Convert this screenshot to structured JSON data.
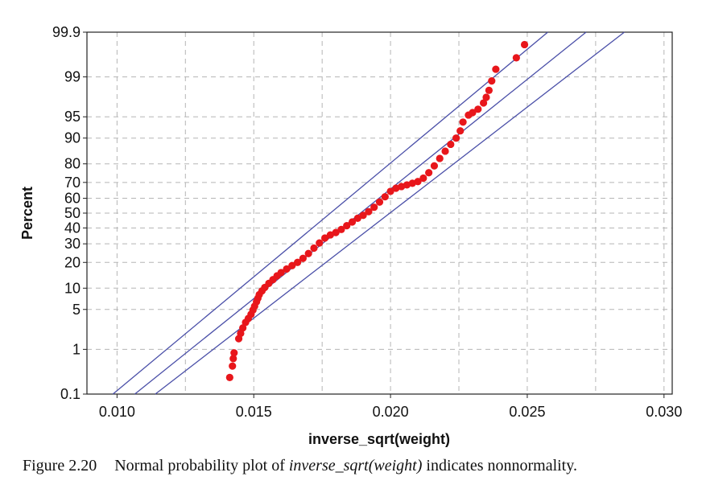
{
  "chart_data": {
    "type": "scatter",
    "title": "",
    "xlabel": "inverse_sqrt(weight)",
    "ylabel": "Percent",
    "xlim": [
      0.0089,
      0.0303
    ],
    "ylim": [
      0.1,
      99.9
    ],
    "y_scale": "normal-probability",
    "x_ticks": [
      0.01,
      0.015,
      0.02,
      0.025,
      0.03
    ],
    "x_tick_labels": [
      "0.010",
      "0.015",
      "0.020",
      "0.025",
      "0.030"
    ],
    "y_ticks": [
      0.1,
      1,
      5,
      10,
      20,
      30,
      40,
      50,
      60,
      70,
      80,
      90,
      95,
      99,
      99.9
    ],
    "y_tick_labels": [
      "0.1",
      "1",
      "5",
      "10",
      "20",
      "30",
      "40",
      "50",
      "60",
      "70",
      "80",
      "90",
      "95",
      "99",
      "99.9"
    ],
    "grid": true,
    "point_color": "#e8161b",
    "line_color": "#4a4fa8",
    "fit_lines": [
      {
        "role": "fit",
        "points": [
          [
            0.01065,
            0.1
          ],
          [
            0.02715,
            99.9
          ]
        ]
      },
      {
        "role": "upper-bound",
        "points": [
          [
            0.00985,
            0.1
          ],
          [
            0.02575,
            99.9
          ]
        ]
      },
      {
        "role": "lower-bound",
        "points": [
          [
            0.0114,
            0.1
          ],
          [
            0.02855,
            99.9
          ]
        ]
      }
    ],
    "points": [
      [
        0.01412,
        0.25
      ],
      [
        0.01422,
        0.45
      ],
      [
        0.01425,
        0.65
      ],
      [
        0.01428,
        0.85
      ],
      [
        0.01445,
        1.6
      ],
      [
        0.01452,
        2.0
      ],
      [
        0.0146,
        2.5
      ],
      [
        0.0147,
        3.1
      ],
      [
        0.0148,
        3.6
      ],
      [
        0.0149,
        4.2
      ],
      [
        0.01497,
        4.9
      ],
      [
        0.01503,
        5.6
      ],
      [
        0.0151,
        6.5
      ],
      [
        0.01515,
        7.3
      ],
      [
        0.0152,
        8.2
      ],
      [
        0.0153,
        9.2
      ],
      [
        0.0154,
        10.2
      ],
      [
        0.01555,
        11.5
      ],
      [
        0.0157,
        12.8
      ],
      [
        0.01585,
        14.2
      ],
      [
        0.016,
        15.5
      ],
      [
        0.0162,
        17.0
      ],
      [
        0.0164,
        18.5
      ],
      [
        0.0166,
        20.0
      ],
      [
        0.0168,
        22.0
      ],
      [
        0.017,
        24.5
      ],
      [
        0.0172,
        27.5
      ],
      [
        0.0174,
        30.5
      ],
      [
        0.0176,
        33.5
      ],
      [
        0.0178,
        35.5
      ],
      [
        0.018,
        37.0
      ],
      [
        0.0182,
        39.0
      ],
      [
        0.0184,
        41.5
      ],
      [
        0.0186,
        44.0
      ],
      [
        0.0188,
        46.5
      ],
      [
        0.019,
        48.5
      ],
      [
        0.0192,
        51.0
      ],
      [
        0.0194,
        54.0
      ],
      [
        0.0196,
        57.5
      ],
      [
        0.0198,
        61.0
      ],
      [
        0.02,
        64.5
      ],
      [
        0.0202,
        66.5
      ],
      [
        0.0204,
        67.5
      ],
      [
        0.0206,
        68.5
      ],
      [
        0.0208,
        69.5
      ],
      [
        0.021,
        70.5
      ],
      [
        0.0212,
        72.5
      ],
      [
        0.0214,
        75.5
      ],
      [
        0.0216,
        79.0
      ],
      [
        0.0218,
        82.5
      ],
      [
        0.022,
        85.5
      ],
      [
        0.0222,
        88.0
      ],
      [
        0.0224,
        90.0
      ],
      [
        0.02255,
        92.0
      ],
      [
        0.02265,
        94.0
      ],
      [
        0.02285,
        95.3
      ],
      [
        0.023,
        95.7
      ],
      [
        0.0232,
        96.2
      ],
      [
        0.0234,
        97.0
      ],
      [
        0.0235,
        97.6
      ],
      [
        0.0236,
        98.2
      ],
      [
        0.0237,
        98.8
      ],
      [
        0.02385,
        99.3
      ],
      [
        0.0246,
        99.6
      ],
      [
        0.0249,
        99.8
      ]
    ]
  },
  "caption": {
    "number": "Figure 2.20",
    "text_before": "Normal probability plot of ",
    "text_emphasis": "inverse_sqrt(weight)",
    "text_after": " indicates nonnormality."
  }
}
